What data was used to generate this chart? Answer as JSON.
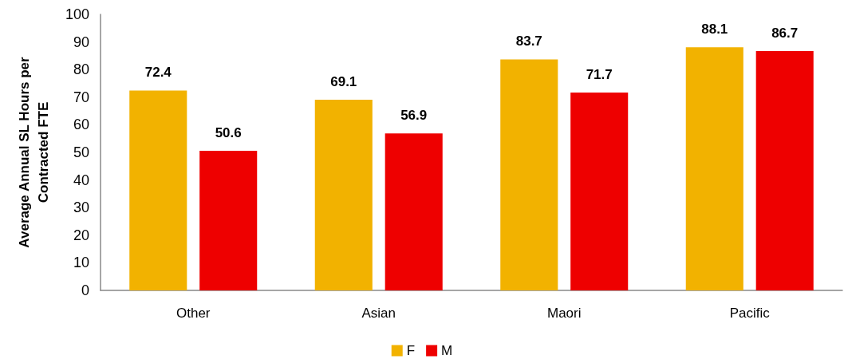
{
  "chart_data": {
    "type": "bar",
    "categories": [
      "Other",
      "Asian",
      "Maori",
      "Pacific"
    ],
    "series": [
      {
        "name": "F",
        "color": "#f2b200",
        "values": [
          72.4,
          69.1,
          83.7,
          88.1
        ]
      },
      {
        "name": "M",
        "color": "#ee0000",
        "values": [
          50.6,
          56.9,
          71.7,
          86.7
        ]
      }
    ],
    "ylabel": "Average Annual SL Hours per Contracted FTE",
    "ylim": [
      0,
      100
    ],
    "yticks": [
      0,
      10,
      20,
      30,
      40,
      50,
      60,
      70,
      80,
      90,
      100
    ],
    "data_labels": true,
    "grid": false,
    "legend": "bottom"
  }
}
